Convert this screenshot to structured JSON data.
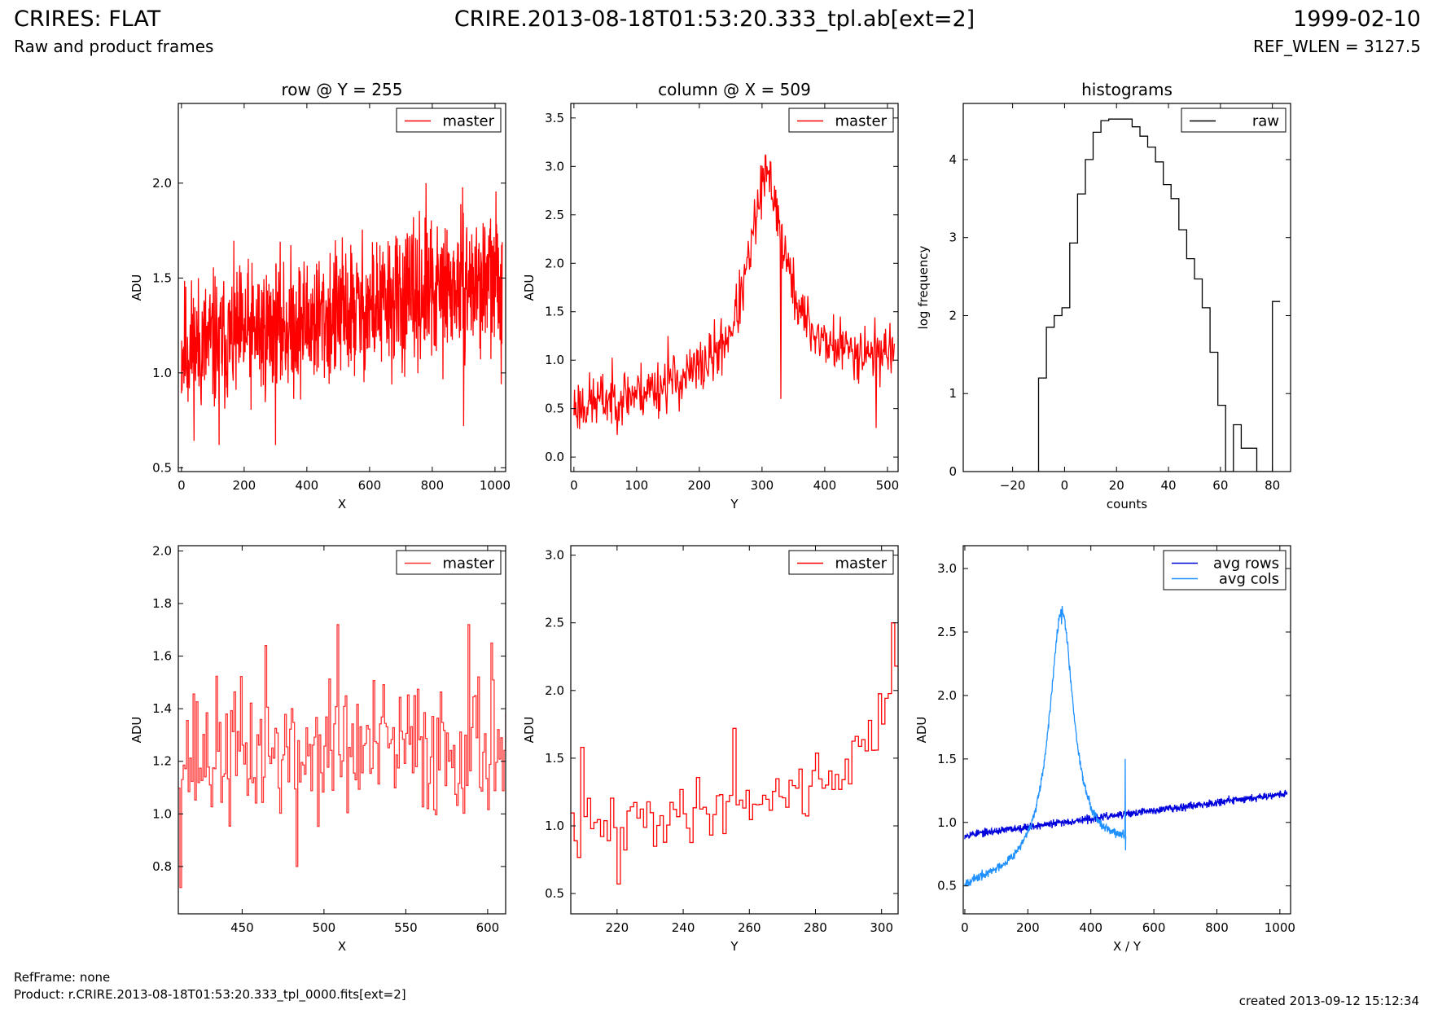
{
  "header": {
    "title": "CRIRES: FLAT",
    "subtitle": "Raw and product frames",
    "filename": "CRIRE.2013-08-18T01:53:20.333_tpl.ab[ext=2]",
    "date": "1999-02-10",
    "ref_wlen": "REF_WLEN = 3127.5"
  },
  "footer": {
    "refframe": "RefFrame: none",
    "product": "Product: r.CRIRE.2013-08-18T01:53:20.333_tpl_0000.fits[ext=2]",
    "created": "created 2013-09-12 15:12:34"
  },
  "colors": {
    "master": "#ff0000",
    "master_zoom": "#ff3333",
    "raw": "#000000",
    "avg_rows": "#0000dd",
    "avg_cols": "#1e90ff"
  },
  "chart_data": [
    {
      "id": "row",
      "type": "line",
      "title": "row @ Y = 255",
      "xlabel": "X",
      "ylabel": "ADU",
      "xlim": [
        -10,
        1034
      ],
      "ylim": [
        0.48,
        2.42
      ],
      "xticks": [
        0,
        200,
        400,
        600,
        800,
        1000
      ],
      "yticks": [
        0.5,
        1.0,
        1.5,
        2.0
      ],
      "legend": "top-right",
      "series": [
        {
          "name": "master",
          "color": "#ff0000",
          "gen": "noise",
          "x0": 0,
          "x1": 1023,
          "n": 1024,
          "trend": [
            1.12,
            1.5
          ],
          "amp": 0.3,
          "seed": 11,
          "spikes": [
            [
              780,
              2.0
            ],
            [
              900,
              0.72
            ],
            [
              1020,
              0.94
            ],
            [
              120,
              0.62
            ],
            [
              300,
              0.62
            ]
          ]
        }
      ]
    },
    {
      "id": "col",
      "type": "line",
      "title": "column @ X = 509",
      "xlabel": "Y",
      "ylabel": "ADU",
      "xlim": [
        -5,
        517
      ],
      "ylim": [
        -0.15,
        3.65
      ],
      "xticks": [
        0,
        100,
        200,
        300,
        400,
        500
      ],
      "yticks": [
        0.0,
        0.5,
        1.0,
        1.5,
        2.0,
        2.5,
        3.0,
        3.5
      ],
      "legend": "top-right",
      "series": [
        {
          "name": "master",
          "color": "#ff0000",
          "gen": "peak",
          "x0": 0,
          "x1": 511,
          "n": 512,
          "base": [
            0.5,
            1.05
          ],
          "peak_x": 308,
          "peak_h": 2.05,
          "peak_w": 42,
          "amp": 0.25,
          "seed": 23,
          "spikes": [
            [
              307,
              2.84
            ],
            [
              150,
              1.25
            ],
            [
              330,
              0.6
            ],
            [
              482,
              0.3
            ]
          ]
        }
      ]
    },
    {
      "id": "hist",
      "type": "bar",
      "title": "histograms",
      "xlabel": "counts",
      "ylabel": "log frequency",
      "xlim": [
        -39,
        87
      ],
      "ylim": [
        0,
        4.72
      ],
      "xticks": [
        -20,
        0,
        20,
        40,
        60,
        80
      ],
      "yticks": [
        0,
        1,
        2,
        3,
        4
      ],
      "legend": "top-right",
      "series": [
        {
          "name": "raw",
          "color": "#000000",
          "gen": "steps",
          "x_edges_start": -10,
          "bin_width": 3,
          "values": [
            1.2,
            1.85,
            2.0,
            2.1,
            2.93,
            3.56,
            4.0,
            4.35,
            4.5,
            4.52,
            4.52,
            4.52,
            4.42,
            4.3,
            4.16,
            3.97,
            3.68,
            3.5,
            3.1,
            2.73,
            2.47,
            2.1,
            1.53,
            0.85,
            0.0,
            0.6,
            0.3,
            0.3,
            0.0,
            0.0,
            2.18
          ]
        }
      ]
    },
    {
      "id": "rowzoom",
      "type": "line",
      "title": "",
      "xlabel": "X",
      "ylabel": "ADU",
      "xlim": [
        411,
        611
      ],
      "ylim": [
        0.62,
        2.02
      ],
      "xticks": [
        450,
        500,
        550,
        600
      ],
      "yticks": [
        0.8,
        1.0,
        1.2,
        1.4,
        1.6,
        1.8,
        2.0
      ],
      "legend": "top-right",
      "series": [
        {
          "name": "master",
          "color": "#ff3333",
          "gen": "steps_noise",
          "x0": 411,
          "x1": 611,
          "n": 201,
          "trend": [
            1.22,
            1.26
          ],
          "amp": 0.22,
          "seed": 37,
          "spikes": [
            [
              412,
              0.72
            ],
            [
              508,
              1.72
            ],
            [
              588,
              1.72
            ],
            [
              602,
              1.65
            ],
            [
              464,
              1.64
            ],
            [
              483,
              0.8
            ]
          ]
        }
      ]
    },
    {
      "id": "colzoom",
      "type": "line",
      "title": "",
      "xlabel": "Y",
      "ylabel": "ADU",
      "xlim": [
        206,
        305
      ],
      "ylim": [
        0.35,
        3.07
      ],
      "xticks": [
        220,
        240,
        260,
        280,
        300
      ],
      "yticks": [
        0.5,
        1.0,
        1.5,
        2.0,
        2.5,
        3.0
      ],
      "legend": "top-right",
      "series": [
        {
          "name": "master",
          "color": "#ff0000",
          "gen": "steps_peak",
          "x0": 206,
          "x1": 305,
          "n": 100,
          "base": [
            0.95,
            1.35
          ],
          "peak_x": 308,
          "peak_h": 1.15,
          "peak_w": 9,
          "amp": 0.18,
          "seed": 41,
          "spikes": [
            [
              209,
              1.58
            ],
            [
              220,
              0.57
            ],
            [
              255,
              1.72
            ],
            [
              303,
              2.5
            ]
          ]
        }
      ]
    },
    {
      "id": "avg",
      "type": "line",
      "title": "",
      "xlabel": "X / Y",
      "ylabel": "ADU",
      "xlim": [
        -5,
        1034
      ],
      "ylim": [
        0.28,
        3.18
      ],
      "xticks": [
        0,
        200,
        400,
        600,
        800,
        1000
      ],
      "yticks": [
        0.5,
        1.0,
        1.5,
        2.0,
        2.5,
        3.0
      ],
      "legend": "top-right",
      "series": [
        {
          "name": "avg rows",
          "color": "#0000dd",
          "gen": "noise",
          "x0": 0,
          "x1": 1023,
          "n": 1024,
          "trend": [
            0.9,
            1.23
          ],
          "amp": 0.025,
          "seed": 53,
          "spikes": []
        },
        {
          "name": "avg cols",
          "color": "#1e90ff",
          "gen": "peak",
          "x0": 0,
          "x1": 511,
          "n": 512,
          "base": [
            0.48,
            0.8
          ],
          "peak_x": 307,
          "peak_h": 2.0,
          "peak_w": 55,
          "amp": 0.03,
          "seed": 67,
          "spikes": [
            [
              307,
              2.56
            ],
            [
              509,
              1.5
            ],
            [
              510,
              0.78
            ]
          ]
        }
      ]
    }
  ]
}
